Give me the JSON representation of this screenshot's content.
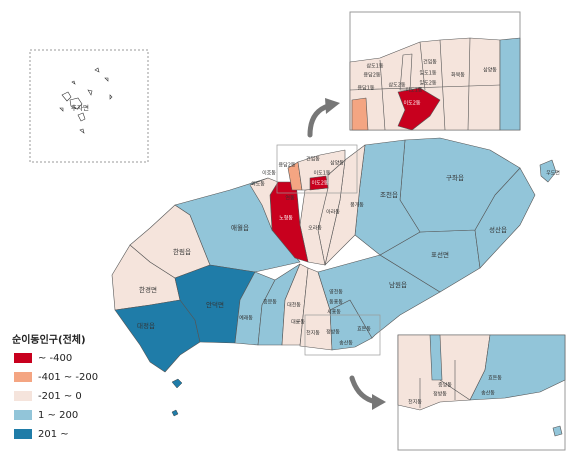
{
  "legend": {
    "title": "순이동인구(전체)",
    "items": [
      {
        "label": "~ -400",
        "color": "#c8001e"
      },
      {
        "label": "-401 ~ -200",
        "color": "#f4a582"
      },
      {
        "label": "-201 ~ 0",
        "color": "#f5e4dc"
      },
      {
        "label": "1 ~ 200",
        "color": "#92c5d9"
      },
      {
        "label": "201 ~",
        "color": "#1f7ca8"
      }
    ]
  },
  "regions": [
    {
      "name": "추자면"
    },
    {
      "name": "한경면",
      "class": 2
    },
    {
      "name": "한림읍",
      "class": 2
    },
    {
      "name": "애월읍",
      "class": 3
    },
    {
      "name": "대정읍",
      "class": 4
    },
    {
      "name": "안덕면",
      "class": 4
    },
    {
      "name": "예래동",
      "class": 3
    },
    {
      "name": "중문동",
      "class": 3
    },
    {
      "name": "대천동",
      "class": 2
    },
    {
      "name": "대륜동",
      "class": 2
    },
    {
      "name": "천지동",
      "class": 2
    },
    {
      "name": "정방동",
      "class": 2
    },
    {
      "name": "송산동",
      "class": 2
    },
    {
      "name": "효돈동",
      "class": 3
    },
    {
      "name": "영천동",
      "class": 2
    },
    {
      "name": "동홍동",
      "class": 2
    },
    {
      "name": "서홍동",
      "class": 2
    },
    {
      "name": "남원읍",
      "class": 3
    },
    {
      "name": "표선면",
      "class": 3
    },
    {
      "name": "성산읍",
      "class": 3
    },
    {
      "name": "구좌읍",
      "class": 3
    },
    {
      "name": "조천읍",
      "class": 3
    },
    {
      "name": "봉개동",
      "class": 2
    },
    {
      "name": "아라동",
      "class": 2
    },
    {
      "name": "오라동",
      "class": 2
    },
    {
      "name": "노형동",
      "class": 0
    },
    {
      "name": "연동",
      "class": 2
    },
    {
      "name": "외도동",
      "class": 2
    },
    {
      "name": "이호동",
      "class": 2
    },
    {
      "name": "용담2동",
      "class": 1
    },
    {
      "name": "건입동",
      "class": 2
    },
    {
      "name": "삼양동",
      "class": 3
    },
    {
      "name": "이도1동",
      "class": 2
    },
    {
      "name": "이도2동",
      "class": 0
    },
    {
      "name": "우도면",
      "class": 3
    },
    {
      "name": "용담1동",
      "class": 2
    },
    {
      "name": "삼도1동",
      "class": 2
    },
    {
      "name": "삼도2동",
      "class": 2
    },
    {
      "name": "일도1동",
      "class": 2
    },
    {
      "name": "일도2동",
      "class": 2
    },
    {
      "name": "화북동",
      "class": 2
    },
    {
      "name": "중앙동",
      "class": 2
    }
  ]
}
